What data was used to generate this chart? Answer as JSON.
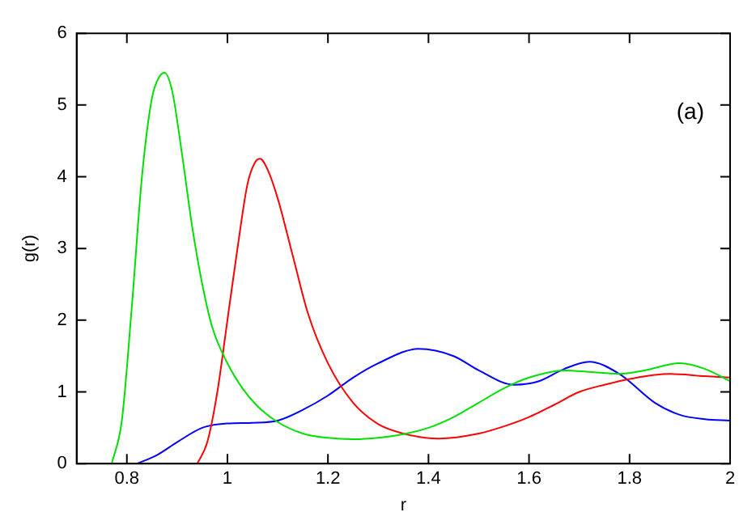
{
  "chart_data": {
    "type": "line",
    "xlabel": "r",
    "ylabel": "g(r)",
    "annotations": [
      "(a)"
    ],
    "xlim": [
      0.7,
      2
    ],
    "xticks": [
      0.8,
      1,
      1.2,
      1.4,
      1.6,
      1.8,
      2
    ],
    "ylim": [
      0,
      6
    ],
    "yticks": [
      0,
      1,
      2,
      3,
      4,
      5,
      6
    ],
    "grid": false,
    "legend": false,
    "marker": "none",
    "line_style": "solid",
    "series": [
      {
        "color": "#00e000",
        "x": [
          0.77,
          0.79,
          0.81,
          0.83,
          0.85,
          0.865,
          0.875,
          0.89,
          0.91,
          0.93,
          0.95,
          0.97,
          1.0,
          1.03,
          1.06,
          1.1,
          1.15,
          1.2,
          1.25,
          1.3,
          1.35,
          1.4,
          1.45,
          1.5,
          1.55,
          1.6,
          1.67,
          1.72,
          1.78,
          1.83,
          1.9,
          1.95,
          2.0
        ],
        "values": [
          0,
          0.6,
          2.2,
          4.0,
          5.1,
          5.4,
          5.45,
          5.2,
          4.3,
          3.3,
          2.5,
          1.9,
          1.4,
          1.05,
          0.8,
          0.58,
          0.42,
          0.36,
          0.34,
          0.36,
          0.41,
          0.5,
          0.65,
          0.85,
          1.05,
          1.2,
          1.3,
          1.28,
          1.25,
          1.3,
          1.4,
          1.32,
          1.15
        ]
      },
      {
        "color": "#ff0000",
        "x": [
          0.94,
          0.96,
          0.98,
          1.0,
          1.02,
          1.04,
          1.055,
          1.065,
          1.08,
          1.1,
          1.13,
          1.16,
          1.2,
          1.25,
          1.3,
          1.35,
          1.42,
          1.5,
          1.55,
          1.6,
          1.65,
          1.7,
          1.75,
          1.8,
          1.88,
          1.95,
          2.0
        ],
        "values": [
          0,
          0.3,
          1.0,
          2.0,
          3.0,
          3.9,
          4.2,
          4.25,
          4.1,
          3.7,
          2.9,
          2.1,
          1.4,
          0.85,
          0.55,
          0.42,
          0.35,
          0.42,
          0.52,
          0.65,
          0.82,
          1.0,
          1.1,
          1.18,
          1.25,
          1.22,
          1.2
        ]
      },
      {
        "color": "#0000ff",
        "x": [
          0.82,
          0.86,
          0.9,
          0.95,
          1.0,
          1.05,
          1.1,
          1.15,
          1.2,
          1.25,
          1.3,
          1.38,
          1.45,
          1.5,
          1.57,
          1.62,
          1.67,
          1.72,
          1.78,
          1.85,
          1.9,
          1.95,
          2.0
        ],
        "values": [
          0,
          0.12,
          0.3,
          0.5,
          0.56,
          0.57,
          0.6,
          0.75,
          0.95,
          1.2,
          1.4,
          1.6,
          1.5,
          1.3,
          1.1,
          1.15,
          1.32,
          1.42,
          1.25,
          0.85,
          0.68,
          0.62,
          0.6
        ]
      }
    ]
  }
}
